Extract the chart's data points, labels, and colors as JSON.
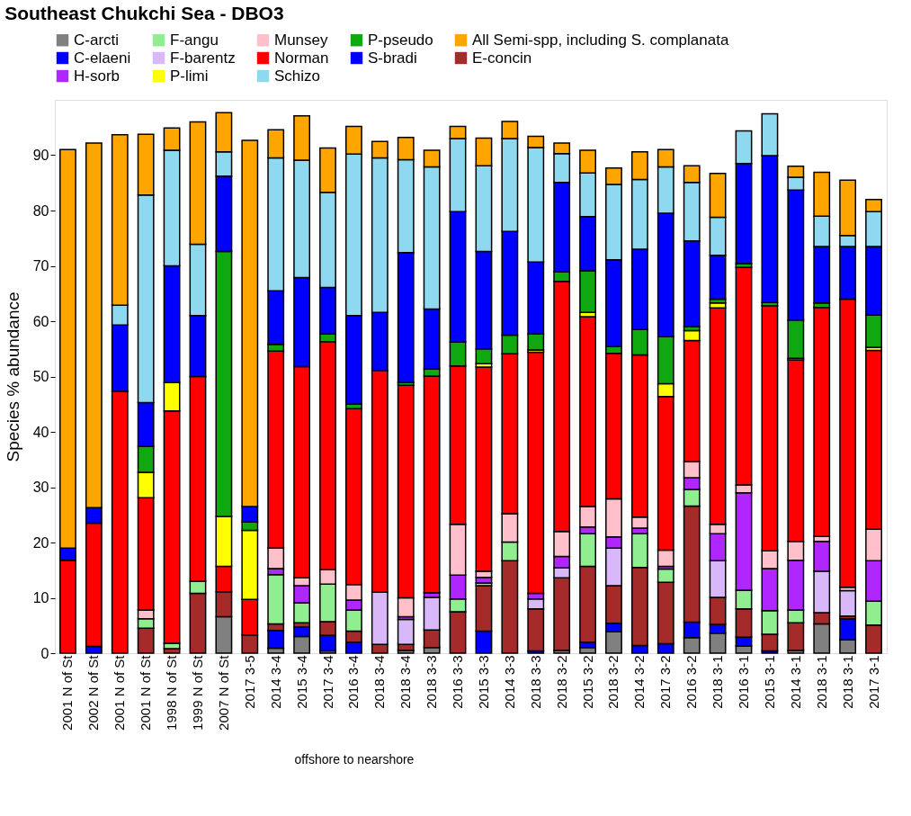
{
  "chart_data": {
    "type": "bar",
    "stacked": true,
    "title": "Southeast Chukchi Sea - DBO3",
    "ylabel": "Species % abundance",
    "categories": [
      "2001 N of St",
      "2002 N of St",
      "2001 N of St",
      "2001 N of St",
      "1998 N of St",
      "1999 N of St",
      "2007 N of St",
      "2017 3-5",
      "2014 3-4",
      "2015 3-4",
      "2017 3-4",
      "2016 3-4",
      "2018 3-4",
      "2018 3-4",
      "2018 3-3",
      "2016 3-3",
      "2015 3-3",
      "2014 3-3",
      "2018 3-3",
      "2018 3-2",
      "2015 3-2",
      "2018 3-2",
      "2014 3-2",
      "2017 3-2",
      "2016 3-2",
      "2018 3-1",
      "2016 3-1",
      "2015 3-1",
      "2014 3-1",
      "2018 3-1",
      "2018 3-1",
      "2017 3-1"
    ],
    "ylim": [
      0,
      100
    ],
    "yticks": [
      0,
      10,
      20,
      30,
      40,
      50,
      60,
      70,
      80,
      90
    ],
    "grid": false,
    "legend": "top",
    "annotations": [
      "offshore to nearshore"
    ],
    "series": [
      {
        "name": "C-arcti",
        "color": "#808080",
        "values": [
          null,
          null,
          null,
          null,
          null,
          null,
          6.6,
          null,
          0.9,
          3.0,
          0.4,
          null,
          null,
          0.5,
          1.0,
          null,
          null,
          null,
          null,
          0.5,
          1.0,
          3.9,
          null,
          null,
          2.8,
          3.6,
          1.3,
          null,
          0.5,
          5.3,
          2.4,
          null
        ]
      },
      {
        "name": "C-elaeni",
        "color": "#0000ff",
        "values": [
          null,
          1.2,
          null,
          null,
          null,
          null,
          null,
          null,
          3.2,
          1.7,
          2.8,
          2.0,
          null,
          null,
          null,
          null,
          4.0,
          null,
          0.4,
          null,
          1.0,
          1.5,
          1.4,
          1.7,
          2.8,
          1.6,
          1.6,
          0.4,
          null,
          null,
          3.8,
          null
        ]
      },
      {
        "name": "E-concin",
        "color": "#a52a2a",
        "values": [
          null,
          null,
          null,
          4.5,
          0.8,
          10.8,
          4.5,
          3.3,
          1.2,
          0.8,
          2.5,
          2.0,
          1.6,
          1.1,
          3.2,
          7.5,
          8.2,
          16.7,
          7.6,
          13.1,
          13.7,
          6.8,
          14.1,
          11.1,
          21.0,
          4.9,
          5.1,
          3.0,
          5.0,
          2.0,
          0.5,
          5.1
        ]
      },
      {
        "name": "F-angu",
        "color": "#90ee90",
        "values": [
          null,
          null,
          null,
          1.7,
          1.0,
          2.2,
          null,
          null,
          8.9,
          3.6,
          6.8,
          3.8,
          null,
          null,
          null,
          2.3,
          0.5,
          3.4,
          null,
          null,
          5.9,
          null,
          6.1,
          2.4,
          3.0,
          null,
          3.4,
          4.3,
          2.3,
          null,
          null,
          4.3
        ]
      },
      {
        "name": "F-barentz",
        "color": "#d8b8f8",
        "values": [
          null,
          null,
          null,
          null,
          null,
          null,
          null,
          null,
          null,
          null,
          null,
          null,
          9.4,
          4.5,
          5.9,
          null,
          null,
          null,
          1.8,
          1.8,
          null,
          6.8,
          null,
          null,
          null,
          6.6,
          null,
          null,
          null,
          7.5,
          4.6,
          null
        ]
      },
      {
        "name": "H-sorb",
        "color": "#b026ff",
        "values": [
          null,
          null,
          null,
          null,
          null,
          null,
          null,
          null,
          1.1,
          3.1,
          null,
          1.8,
          null,
          0.5,
          0.8,
          4.3,
          1.0,
          null,
          1.0,
          2.1,
          1.2,
          2.0,
          1.0,
          0.5,
          2.1,
          4.9,
          17.6,
          7.6,
          9.0,
          5.4,
          null,
          7.3
        ]
      },
      {
        "name": "Munsey",
        "color": "#ffc0cb",
        "values": [
          null,
          null,
          null,
          1.6,
          null,
          null,
          null,
          null,
          3.7,
          1.4,
          2.6,
          2.8,
          null,
          3.4,
          null,
          9.2,
          1.1,
          5.1,
          null,
          4.5,
          3.7,
          6.9,
          2.0,
          2.9,
          2.9,
          1.7,
          1.4,
          3.2,
          3.4,
          0.9,
          0.6,
          5.7
        ]
      },
      {
        "name": "Norman",
        "color": "#ff0000",
        "values": [
          16.8,
          22.3,
          47.3,
          20.3,
          42.0,
          37.0,
          4.6,
          6.4,
          35.6,
          38.2,
          41.2,
          31.8,
          40.1,
          38.4,
          39.2,
          28.6,
          36.9,
          28.9,
          43.6,
          45.2,
          34.3,
          26.3,
          29.3,
          27.8,
          21.9,
          39.1,
          39.3,
          44.3,
          32.8,
          41.4,
          52.1,
          32.3
        ]
      },
      {
        "name": "P-limi",
        "color": "#ffff00",
        "values": [
          null,
          null,
          null,
          4.6,
          5.1,
          null,
          9.0,
          12.5,
          null,
          null,
          null,
          null,
          null,
          null,
          null,
          null,
          0.6,
          null,
          0.4,
          null,
          0.8,
          null,
          null,
          2.3,
          1.8,
          0.9,
          null,
          null,
          0.3,
          null,
          null,
          0.6
        ]
      },
      {
        "name": "P-pseudo",
        "color": "#10a810",
        "values": [
          null,
          null,
          null,
          4.7,
          null,
          null,
          47.9,
          1.5,
          1.2,
          null,
          1.4,
          0.8,
          null,
          0.5,
          1.3,
          4.3,
          2.7,
          3.4,
          2.9,
          1.7,
          7.5,
          1.2,
          4.6,
          8.5,
          0.7,
          0.7,
          0.7,
          0.6,
          6.9,
          0.8,
          null,
          5.8
        ]
      },
      {
        "name": "S-bradi",
        "color": "#0000ff",
        "values": [
          2.2,
          2.8,
          12.0,
          7.9,
          21.1,
          11.0,
          13.6,
          2.8,
          9.7,
          16.1,
          8.4,
          16.0,
          10.5,
          23.5,
          10.8,
          23.6,
          17.6,
          18.7,
          13.0,
          16.2,
          9.8,
          15.7,
          14.5,
          22.3,
          15.5,
          7.9,
          18.1,
          26.5,
          23.5,
          10.2,
          9.5,
          12.4
        ]
      },
      {
        "name": "Schizo",
        "color": "#8ed8f0",
        "values": [
          null,
          null,
          3.6,
          37.5,
          20.9,
          12.9,
          4.4,
          null,
          24.0,
          21.2,
          17.2,
          29.2,
          27.9,
          16.8,
          25.7,
          13.2,
          15.5,
          16.8,
          20.7,
          5.2,
          7.9,
          13.6,
          12.6,
          8.4,
          10.6,
          6.9,
          5.9,
          7.6,
          2.3,
          5.5,
          2.0,
          6.3
        ]
      },
      {
        "name": "All Semi-spp, including S. complanata",
        "color": "#ffa500",
        "values": [
          72.0,
          65.9,
          30.8,
          11.0,
          4.0,
          22.1,
          7.1,
          66.2,
          5.1,
          8.0,
          8.0,
          5.0,
          3.0,
          4.0,
          3.0,
          2.2,
          5.0,
          3.1,
          2.0,
          1.9,
          4.1,
          3.0,
          5.0,
          3.1,
          3.0,
          7.9,
          null,
          null,
          2.0,
          7.9,
          10.0,
          2.2
        ]
      }
    ]
  }
}
